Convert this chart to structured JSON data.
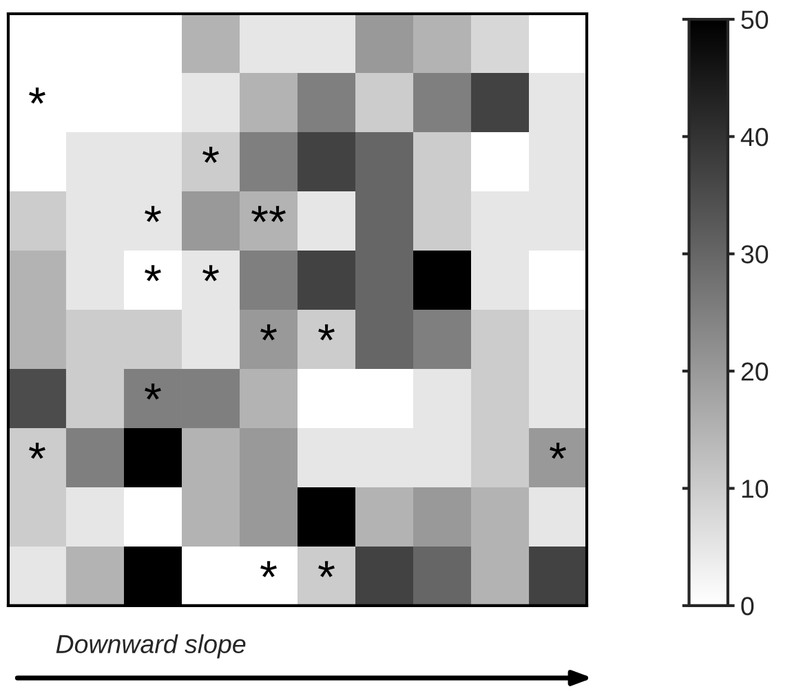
{
  "chart_data": {
    "type": "heatmap",
    "categories": [
      null,
      null,
      null,
      null,
      null,
      null,
      null,
      null,
      null,
      null
    ],
    "y_categories": [
      null,
      null,
      null,
      null,
      null,
      null,
      null,
      null,
      null,
      null
    ],
    "cells": [
      [
        0,
        0,
        0,
        15,
        5,
        5,
        20,
        15,
        8,
        0
      ],
      [
        0,
        0,
        0,
        5,
        15,
        25,
        10,
        25,
        37,
        5
      ],
      [
        0,
        5,
        5,
        10,
        25,
        37,
        30,
        10,
        0,
        5
      ],
      [
        10,
        5,
        5,
        20,
        15,
        5,
        30,
        10,
        5,
        5
      ],
      [
        15,
        5,
        0,
        5,
        25,
        37,
        30,
        50,
        5,
        0
      ],
      [
        15,
        10,
        10,
        5,
        20,
        10,
        30,
        25,
        10,
        5
      ],
      [
        35,
        10,
        25,
        25,
        15,
        0,
        0,
        5,
        10,
        5
      ],
      [
        10,
        25,
        50,
        15,
        20,
        5,
        5,
        5,
        10,
        20
      ],
      [
        10,
        5,
        0,
        15,
        20,
        50,
        15,
        20,
        15,
        5
      ],
      [
        5,
        15,
        50,
        0,
        0,
        10,
        37,
        30,
        15,
        37
      ]
    ],
    "cell_labels": [
      [
        null,
        null,
        null,
        null,
        null,
        null,
        null,
        null,
        null,
        null
      ],
      [
        "*",
        null,
        null,
        null,
        null,
        null,
        null,
        null,
        null,
        null
      ],
      [
        null,
        null,
        null,
        "*",
        null,
        null,
        null,
        null,
        null,
        null
      ],
      [
        null,
        null,
        "*",
        null,
        "**",
        null,
        null,
        null,
        null,
        null
      ],
      [
        null,
        null,
        "*",
        "*",
        null,
        null,
        null,
        null,
        null,
        null
      ],
      [
        null,
        null,
        null,
        null,
        "*",
        "*",
        null,
        null,
        null,
        null
      ],
      [
        null,
        null,
        "*",
        null,
        null,
        null,
        null,
        null,
        null,
        null
      ],
      [
        "*",
        null,
        null,
        null,
        null,
        null,
        null,
        null,
        null,
        "*"
      ],
      [
        null,
        null,
        null,
        null,
        null,
        null,
        null,
        null,
        null,
        null
      ],
      [
        null,
        null,
        null,
        null,
        "*",
        "*",
        null,
        null,
        null,
        null
      ]
    ],
    "clim": [
      0,
      50
    ],
    "cticks": [
      0,
      10,
      20,
      30,
      40,
      50
    ],
    "annotations": [
      "Downward slope"
    ]
  }
}
